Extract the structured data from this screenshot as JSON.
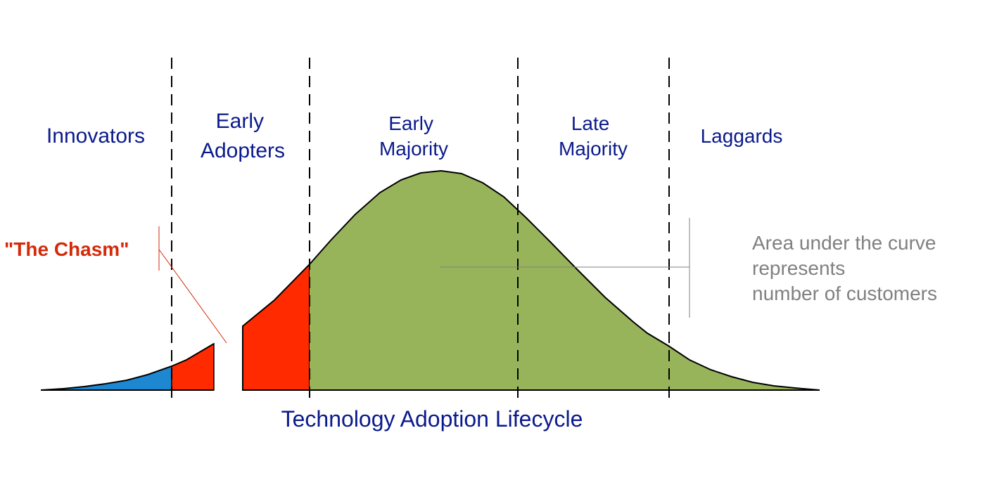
{
  "colors": {
    "label_text": "#0a1a8c",
    "chasm_red": "#d42a0a",
    "note_gray": "#808080",
    "innovators_fill": "#1e87d2",
    "early_adopters_fill": "#ff2a00",
    "majority_fill": "#98b45a",
    "curve_stroke": "#000000"
  },
  "segments": [
    {
      "id": "innovators",
      "lines": [
        "Innovators"
      ]
    },
    {
      "id": "early-adopters",
      "lines": [
        "Early",
        "Adopters"
      ]
    },
    {
      "id": "early-majority",
      "lines": [
        "Early",
        "Majority"
      ]
    },
    {
      "id": "late-majority",
      "lines": [
        "Late",
        "Majority"
      ]
    },
    {
      "id": "laggards",
      "lines": [
        "Laggards"
      ]
    }
  ],
  "chasm_label": "\"The Chasm\"",
  "note_lines": [
    "Area under the curve",
    "represents",
    "number of customers"
  ],
  "caption": "Technology Adoption Lifecycle"
}
